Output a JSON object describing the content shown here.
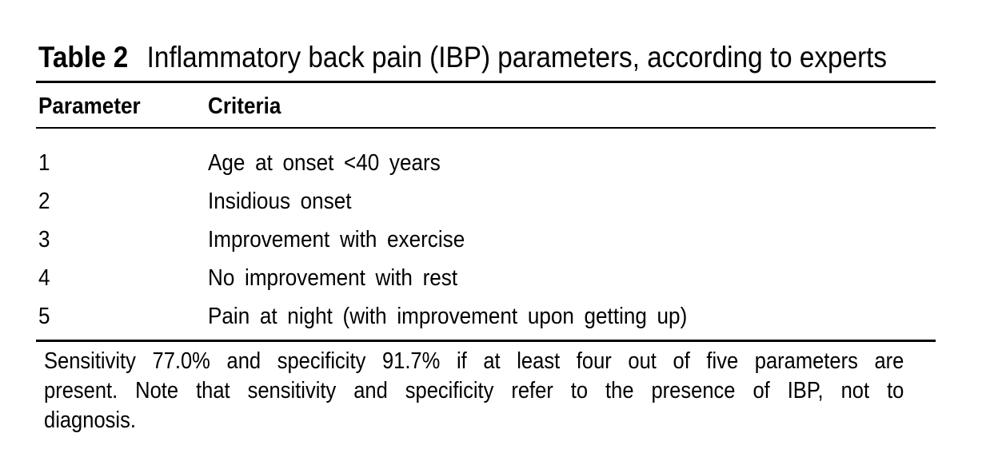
{
  "table": {
    "label": "Table 2",
    "title": "Inflammatory back pain (IBP) parameters, according to experts",
    "columns": [
      "Parameter",
      "Criteria"
    ],
    "rows": [
      {
        "parameter": "1",
        "criteria": "Age at onset <40 years"
      },
      {
        "parameter": "2",
        "criteria": "Insidious onset"
      },
      {
        "parameter": "3",
        "criteria": "Improvement with exercise"
      },
      {
        "parameter": "4",
        "criteria": "No improvement with rest"
      },
      {
        "parameter": "5",
        "criteria": "Pain at night (with improvement upon getting up)"
      }
    ],
    "footnote_lines": [
      "Sensitivity 77.0% and specificity 91.7% if at least four out of five parameters are",
      "present. Note that sensitivity and specificity refer to the presence of IBP, not to",
      "diagnosis."
    ],
    "colors": {
      "text": "#000000",
      "background": "#ffffff",
      "rule": "#000000"
    }
  }
}
